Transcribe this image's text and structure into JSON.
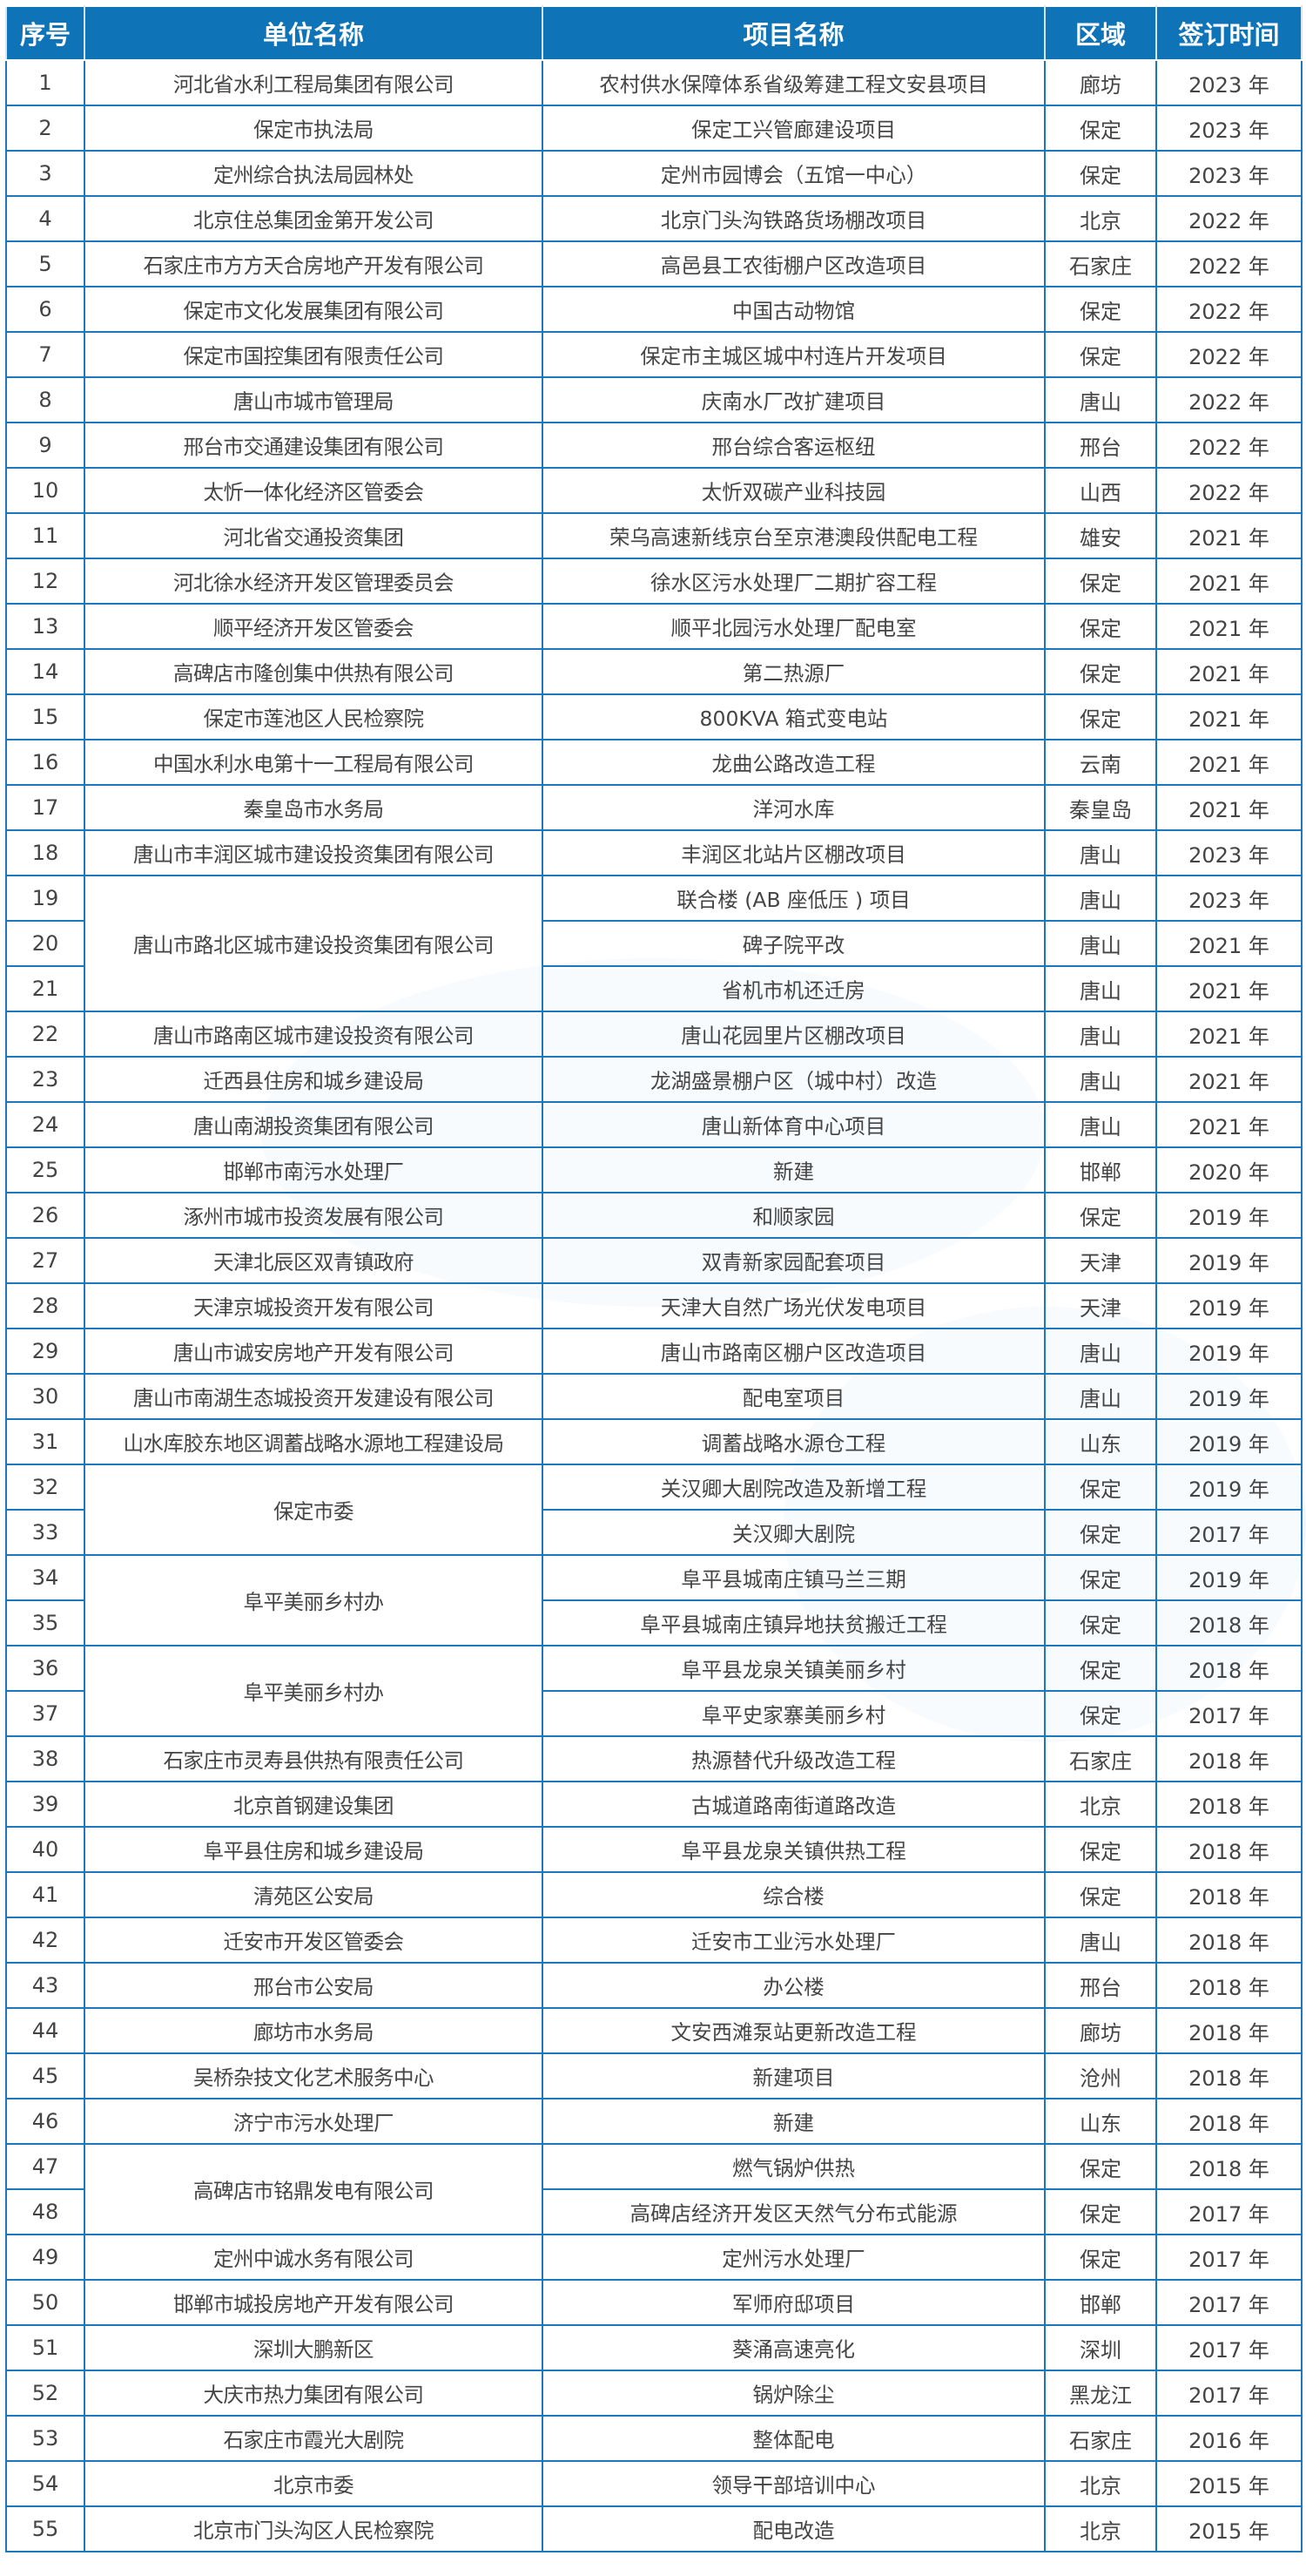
{
  "headers": {
    "no": "序号",
    "unit": "单位名称",
    "project": "项目名称",
    "region": "区域",
    "date": "签订时间"
  },
  "rows": [
    {
      "no": "1",
      "unit": "河北省水利工程局集团有限公司",
      "project": "农村供水保障体系省级筹建工程文安县项目",
      "region": "廊坊",
      "date": "2023 年"
    },
    {
      "no": "2",
      "unit": "保定市执法局",
      "project": "保定工兴管廊建设项目",
      "region": "保定",
      "date": "2023 年"
    },
    {
      "no": "3",
      "unit": "定州综合执法局园林处",
      "project": "定州市园博会（五馆一中心）",
      "region": "保定",
      "date": "2023 年"
    },
    {
      "no": "4",
      "unit": "北京住总集团金第开发公司",
      "project": "北京门头沟铁路货场棚改项目",
      "region": "北京",
      "date": "2022 年"
    },
    {
      "no": "5",
      "unit": "石家庄市方方天合房地产开发有限公司",
      "project": "高邑县工农街棚户区改造项目",
      "region": "石家庄",
      "date": "2022 年"
    },
    {
      "no": "6",
      "unit": "保定市文化发展集团有限公司",
      "project": "中国古动物馆",
      "region": "保定",
      "date": "2022 年"
    },
    {
      "no": "7",
      "unit": "保定市国控集团有限责任公司",
      "project": "保定市主城区城中村连片开发项目",
      "region": "保定",
      "date": "2022 年"
    },
    {
      "no": "8",
      "unit": "唐山市城市管理局",
      "project": "庆南水厂改扩建项目",
      "region": "唐山",
      "date": "2022 年"
    },
    {
      "no": "9",
      "unit": "邢台市交通建设集团有限公司",
      "project": "邢台综合客运枢纽",
      "region": "邢台",
      "date": "2022 年"
    },
    {
      "no": "10",
      "unit": "太忻一体化经济区管委会",
      "project": "太忻双碳产业科技园",
      "region": "山西",
      "date": "2022 年"
    },
    {
      "no": "11",
      "unit": "河北省交通投资集团",
      "project": "荣乌高速新线京台至京港澳段供配电工程",
      "region": "雄安",
      "date": "2021 年"
    },
    {
      "no": "12",
      "unit": "河北徐水经济开发区管理委员会",
      "project": "徐水区污水处理厂二期扩容工程",
      "region": "保定",
      "date": "2021 年"
    },
    {
      "no": "13",
      "unit": "顺平经济开发区管委会",
      "project": "顺平北园污水处理厂配电室",
      "region": "保定",
      "date": "2021 年"
    },
    {
      "no": "14",
      "unit": "高碑店市隆创集中供热有限公司",
      "project": "第二热源厂",
      "region": "保定",
      "date": "2021 年"
    },
    {
      "no": "15",
      "unit": "保定市莲池区人民检察院",
      "project": "800KVA 箱式变电站",
      "region": "保定",
      "date": "2021 年"
    },
    {
      "no": "16",
      "unit": "中国水利水电第十一工程局有限公司",
      "project": "龙曲公路改造工程",
      "region": "云南",
      "date": "2021 年"
    },
    {
      "no": "17",
      "unit": "秦皇岛市水务局",
      "project": "洋河水库",
      "region": "秦皇岛",
      "date": "2021 年"
    },
    {
      "no": "18",
      "unit": "唐山市丰润区城市建设投资集团有限公司",
      "project": "丰润区北站片区棚改项目",
      "region": "唐山",
      "date": "2023 年"
    },
    {
      "no": "19",
      "unit": "唐山市路北区城市建设投资集团有限公司",
      "span": 3,
      "project": "联合楼 (AB 座低压 ) 项目",
      "region": "唐山",
      "date": "2023 年"
    },
    {
      "no": "20",
      "project": "碑子院平改",
      "region": "唐山",
      "date": "2021 年"
    },
    {
      "no": "21",
      "project": "省机市机还迁房",
      "region": "唐山",
      "date": "2021 年"
    },
    {
      "no": "22",
      "unit": "唐山市路南区城市建设投资有限公司",
      "project": "唐山花园里片区棚改项目",
      "region": "唐山",
      "date": "2021 年"
    },
    {
      "no": "23",
      "unit": "迁西县住房和城乡建设局",
      "project": "龙湖盛景棚户区（城中村）改造",
      "region": "唐山",
      "date": "2021 年"
    },
    {
      "no": "24",
      "unit": "唐山南湖投资集团有限公司",
      "project": "唐山新体育中心项目",
      "region": "唐山",
      "date": "2021 年"
    },
    {
      "no": "25",
      "unit": "邯郸市南污水处理厂",
      "project": "新建",
      "region": "邯郸",
      "date": "2020 年"
    },
    {
      "no": "26",
      "unit": "涿州市城市投资发展有限公司",
      "project": "和顺家园",
      "region": "保定",
      "date": "2019 年"
    },
    {
      "no": "27",
      "unit": "天津北辰区双青镇政府",
      "project": "双青新家园配套项目",
      "region": "天津",
      "date": "2019 年"
    },
    {
      "no": "28",
      "unit": "天津京城投资开发有限公司",
      "project": "天津大自然广场光伏发电项目",
      "region": "天津",
      "date": "2019 年"
    },
    {
      "no": "29",
      "unit": "唐山市诚安房地产开发有限公司",
      "project": "唐山市路南区棚户区改造项目",
      "region": "唐山",
      "date": "2019 年"
    },
    {
      "no": "30",
      "unit": "唐山市南湖生态城投资开发建设有限公司",
      "project": "配电室项目",
      "region": "唐山",
      "date": "2019 年"
    },
    {
      "no": "31",
      "unit": "山水库胶东地区调蓄战略水源地工程建设局",
      "project": "调蓄战略水源仓工程",
      "region": "山东",
      "date": "2019 年"
    },
    {
      "no": "32",
      "unit": "保定市委",
      "span": 2,
      "project": "关汉卿大剧院改造及新增工程",
      "region": "保定",
      "date": "2019 年"
    },
    {
      "no": "33",
      "project": "关汉卿大剧院",
      "region": "保定",
      "date": "2017 年"
    },
    {
      "no": "34",
      "unit": "阜平美丽乡村办",
      "span": 2,
      "project": "阜平县城南庄镇马兰三期",
      "region": "保定",
      "date": "2019 年"
    },
    {
      "no": "35",
      "project": "阜平县城南庄镇异地扶贫搬迁工程",
      "region": "保定",
      "date": "2018 年"
    },
    {
      "no": "36",
      "unit": "阜平美丽乡村办",
      "span": 2,
      "project": "阜平县龙泉关镇美丽乡村",
      "region": "保定",
      "date": "2018 年"
    },
    {
      "no": "37",
      "project": "阜平史家寨美丽乡村",
      "region": "保定",
      "date": "2017 年"
    },
    {
      "no": "38",
      "unit": "石家庄市灵寿县供热有限责任公司",
      "project": "热源替代升级改造工程",
      "region": "石家庄",
      "date": "2018 年"
    },
    {
      "no": "39",
      "unit": "北京首钢建设集团",
      "project": "古城道路南街道路改造",
      "region": "北京",
      "date": "2018 年"
    },
    {
      "no": "40",
      "unit": "阜平县住房和城乡建设局",
      "project": "阜平县龙泉关镇供热工程",
      "region": "保定",
      "date": "2018 年"
    },
    {
      "no": "41",
      "unit": "清苑区公安局",
      "project": "综合楼",
      "region": "保定",
      "date": "2018 年"
    },
    {
      "no": "42",
      "unit": "迁安市开发区管委会",
      "project": "迁安市工业污水处理厂",
      "region": "唐山",
      "date": "2018 年"
    },
    {
      "no": "43",
      "unit": "邢台市公安局",
      "project": "办公楼",
      "region": "邢台",
      "date": "2018 年"
    },
    {
      "no": "44",
      "unit": "廊坊市水务局",
      "project": "文安西滩泵站更新改造工程",
      "region": "廊坊",
      "date": "2018 年"
    },
    {
      "no": "45",
      "unit": "吴桥杂技文化艺术服务中心",
      "project": "新建项目",
      "region": "沧州",
      "date": "2018 年"
    },
    {
      "no": "46",
      "unit": "济宁市污水处理厂",
      "project": "新建",
      "region": "山东",
      "date": "2018 年"
    },
    {
      "no": "47",
      "unit": "高碑店市铭鼎发电有限公司",
      "span": 2,
      "project": "燃气锅炉供热",
      "region": "保定",
      "date": "2018 年"
    },
    {
      "no": "48",
      "project": "高碑店经济开发区天然气分布式能源",
      "region": "保定",
      "date": "2017 年"
    },
    {
      "no": "49",
      "unit": "定州中诚水务有限公司",
      "project": "定州污水处理厂",
      "region": "保定",
      "date": "2017 年"
    },
    {
      "no": "50",
      "unit": "邯郸市城投房地产开发有限公司",
      "project": "军师府邸项目",
      "region": "邯郸",
      "date": "2017 年"
    },
    {
      "no": "51",
      "unit": "深圳大鹏新区",
      "project": "葵涌高速亮化",
      "region": "深圳",
      "date": "2017 年"
    },
    {
      "no": "52",
      "unit": "大庆市热力集团有限公司",
      "project": "锅炉除尘",
      "region": "黑龙江",
      "date": "2017 年"
    },
    {
      "no": "53",
      "unit": "石家庄市霞光大剧院",
      "project": "整体配电",
      "region": "石家庄",
      "date": "2016 年"
    },
    {
      "no": "54",
      "unit": "北京市委",
      "project": "领导干部培训中心",
      "region": "北京",
      "date": "2015 年"
    },
    {
      "no": "55",
      "unit": "北京市门头沟区人民检察院",
      "project": "配电改造",
      "region": "北京",
      "date": "2015 年"
    }
  ],
  "colors": {
    "header_bg": "#0f73b8",
    "border": "#1d77bd",
    "text": "#444444"
  }
}
